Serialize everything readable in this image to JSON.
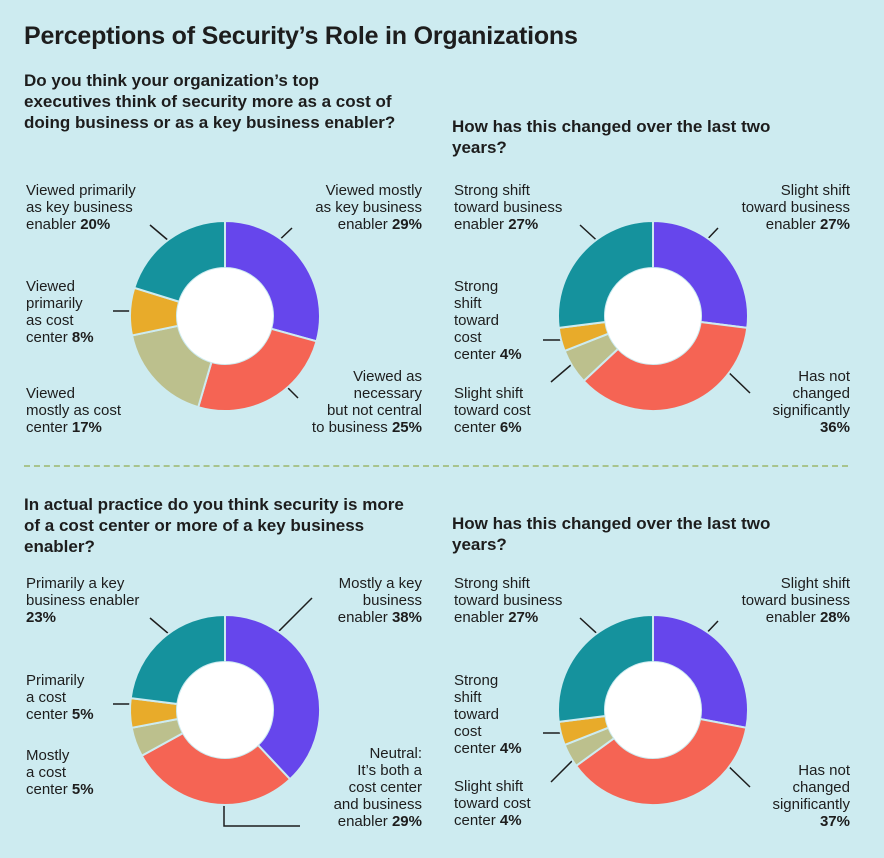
{
  "title": "Perceptions of Security’s Role in Organizations",
  "colors": {
    "purple": "#6646ec",
    "red": "#f56454",
    "sage": "#bcc08d",
    "gold": "#e8ab2a",
    "teal": "#15929d",
    "background": "#cdebf0"
  },
  "q1": "Do you think your organization’s top executives think of security more as a cost of doing business or as a key business enabler?",
  "q2": "How has this changed over the last two years?",
  "q3": "In actual practice do you think security is more of a cost center or more of a key business enabler?",
  "q4": "How has this changed over the last two years?",
  "labels": {
    "c1": {
      "mostly_enabler": [
        "Viewed mostly",
        "as key business",
        "enabler",
        "29%"
      ],
      "necessary": [
        "Viewed as",
        "necessary",
        "but not central",
        "to business",
        "25%"
      ],
      "mostly_cost": [
        "Viewed",
        "mostly as cost",
        "center",
        "17%"
      ],
      "primarily_cost": [
        "Viewed",
        "primarily",
        "as cost",
        "center",
        "8%"
      ],
      "primarily_enabler": [
        "Viewed primarily",
        "as key business",
        "enabler",
        "20%"
      ]
    },
    "c2": {
      "slight_business": [
        "Slight shift",
        "toward business",
        "enabler",
        "27%"
      ],
      "not_changed": [
        "Has not",
        "changed",
        "significantly",
        "36%"
      ],
      "slight_cost": [
        "Slight shift",
        "toward cost",
        "center",
        "6%"
      ],
      "strong_cost": [
        "Strong",
        "shift",
        "toward",
        "cost",
        "center",
        "4%"
      ],
      "strong_business": [
        "Strong shift",
        "toward business",
        "enabler",
        "27%"
      ]
    },
    "c3": {
      "mostly_enabler": [
        "Mostly a key",
        "business",
        "enabler",
        "38%"
      ],
      "neutral": [
        "Neutral:",
        "It’s both a",
        "cost center",
        "and business",
        "enabler",
        "29%"
      ],
      "mostly_cost": [
        "Mostly",
        "a cost",
        "center",
        "5%"
      ],
      "primarily_cost": [
        "Primarily",
        "a cost",
        "center",
        "5%"
      ],
      "primarily_enabler": [
        "Primarily a key",
        "business enabler",
        "23%"
      ]
    },
    "c4": {
      "slight_business": [
        "Slight shift",
        "toward business",
        "enabler",
        "28%"
      ],
      "not_changed": [
        "Has not",
        "changed",
        "significantly",
        "37%"
      ],
      "slight_cost": [
        "Slight shift",
        "toward cost",
        "center",
        "4%"
      ],
      "strong_cost": [
        "Strong",
        "shift",
        "toward",
        "cost",
        "center",
        "4%"
      ],
      "strong_business": [
        "Strong shift",
        "toward business",
        "enabler",
        "27%"
      ]
    }
  },
  "chart_data": [
    {
      "type": "pie",
      "title": "Do you think your organization’s top executives think of security more as a cost of doing business or as a key business enabler?",
      "categories": [
        "Viewed mostly as key business enabler",
        "Viewed as necessary but not central to business",
        "Viewed mostly as cost center",
        "Viewed primarily as cost center",
        "Viewed primarily as key business enabler"
      ],
      "values": [
        29,
        25,
        17,
        8,
        20
      ],
      "unit": "%"
    },
    {
      "type": "pie",
      "title": "How has this changed over the last two years?",
      "categories": [
        "Slight shift toward business enabler",
        "Has not changed significantly",
        "Slight shift toward cost center",
        "Strong shift toward cost center",
        "Strong shift toward business enabler"
      ],
      "values": [
        27,
        36,
        6,
        4,
        27
      ],
      "unit": "%"
    },
    {
      "type": "pie",
      "title": "In actual practice do you think security is more of a cost center or more of a key business enabler?",
      "categories": [
        "Mostly a key business enabler",
        "Neutral: It’s both a cost center and business enabler",
        "Mostly a cost center",
        "Primarily a cost center",
        "Primarily a key business enabler"
      ],
      "values": [
        38,
        29,
        5,
        5,
        23
      ],
      "unit": "%"
    },
    {
      "type": "pie",
      "title": "How has this changed over the last two years?",
      "categories": [
        "Slight shift toward business enabler",
        "Has not changed significantly",
        "Slight shift toward cost center",
        "Strong shift toward cost center",
        "Strong shift toward business enabler"
      ],
      "values": [
        28,
        37,
        4,
        4,
        27
      ],
      "unit": "%"
    }
  ]
}
